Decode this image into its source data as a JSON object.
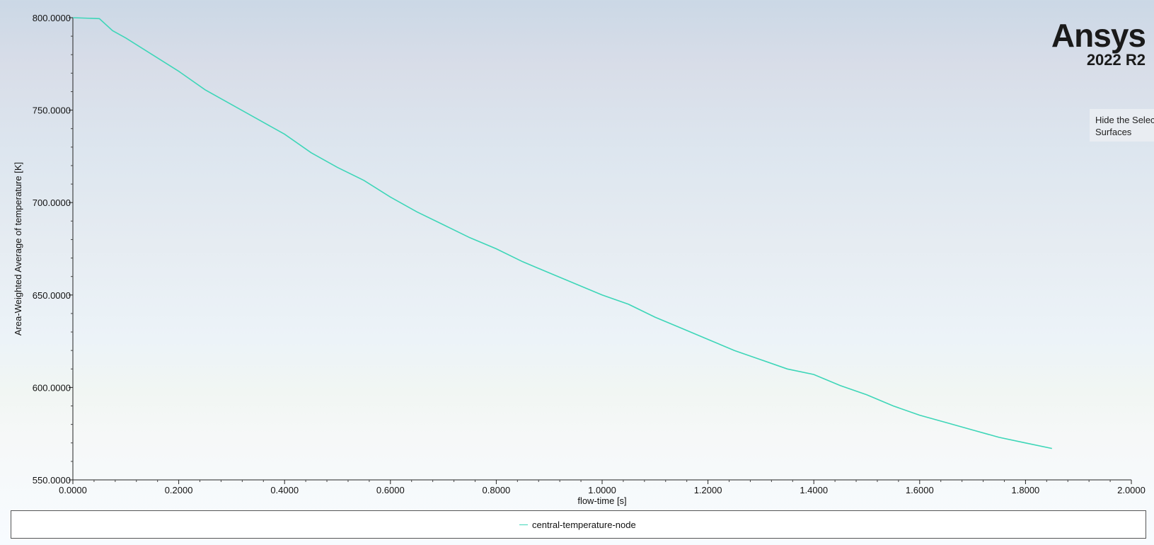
{
  "brand": {
    "name": "Ansys",
    "version": "2022 R2"
  },
  "tooltip": {
    "line1": "Hide the Selec",
    "line2": "Surfaces"
  },
  "legend": {
    "label": "central-temperature-node",
    "color": "#3ed6b8"
  },
  "chart_data": {
    "type": "line",
    "xlabel": "flow-time [s]",
    "ylabel": "Area-Weighted Average of temperature [K]",
    "xlim": [
      0,
      2
    ],
    "ylim": [
      550,
      800
    ],
    "x_ticks": [
      "0.0000",
      "0.2000",
      "0.4000",
      "0.6000",
      "0.8000",
      "1.0000",
      "1.2000",
      "1.4000",
      "1.6000",
      "1.8000",
      "2.0000"
    ],
    "y_ticks": [
      "550.0000",
      "600.0000",
      "650.0000",
      "700.0000",
      "750.0000",
      "800.0000"
    ],
    "x_tick_values": [
      0,
      0.2,
      0.4,
      0.6,
      0.8,
      1.0,
      1.2,
      1.4,
      1.6,
      1.8,
      2.0
    ],
    "y_tick_values": [
      550,
      600,
      650,
      700,
      750,
      800
    ],
    "series": [
      {
        "name": "central-temperature-node",
        "color": "#3ed6b8",
        "x": [
          0.0,
          0.05,
          0.075,
          0.1,
          0.15,
          0.2,
          0.25,
          0.3,
          0.35,
          0.4,
          0.45,
          0.5,
          0.55,
          0.6,
          0.65,
          0.7,
          0.75,
          0.8,
          0.85,
          0.9,
          0.95,
          1.0,
          1.05,
          1.1,
          1.15,
          1.2,
          1.25,
          1.3,
          1.35,
          1.4,
          1.45,
          1.5,
          1.55,
          1.6,
          1.65,
          1.7,
          1.75,
          1.8,
          1.85
        ],
        "y": [
          800,
          799.5,
          793,
          789,
          780,
          771,
          761,
          753,
          745,
          737,
          727,
          719,
          712,
          703,
          695,
          688,
          681,
          675,
          668,
          662,
          656,
          650,
          645,
          638,
          632,
          626,
          620,
          615,
          610,
          607,
          601,
          596,
          590,
          585,
          581,
          577,
          573,
          570,
          567
        ]
      }
    ]
  }
}
